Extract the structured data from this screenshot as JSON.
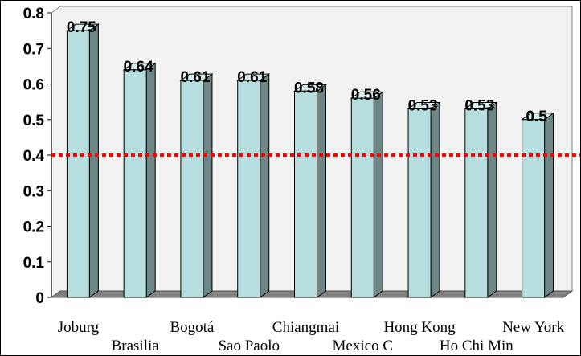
{
  "chart_data": {
    "type": "bar",
    "style": "3d-column",
    "categories": [
      "Joburg",
      "Brasilia",
      "Bogotá",
      "Sao Paolo",
      "Chiangmai",
      "Mexico C",
      "Hong Kong",
      "Ho Chi Min",
      "New York"
    ],
    "values": [
      0.75,
      0.64,
      0.61,
      0.61,
      0.58,
      0.56,
      0.53,
      0.53,
      0.5
    ],
    "data_labels": [
      "0.75",
      "0.64",
      "0.61",
      "0.61",
      "0.58",
      "0.56",
      "0.53",
      "0.53",
      "0.5"
    ],
    "y_ticks": [
      "0",
      "0.1",
      "0.2",
      "0.3",
      "0.4",
      "0.5",
      "0.6",
      "0.7",
      "0.8"
    ],
    "ylim": [
      0,
      0.8
    ],
    "reference_line": {
      "value": 0.4,
      "style": "dotted",
      "color": "#ff0000"
    },
    "grid": false,
    "legend": "none",
    "colors": {
      "bar_front": "#b6dede",
      "bar_side": "#6e8686",
      "bar_top": "#d6eeee",
      "plot_bg": "#f2f2f2",
      "floor": "#7f7f7f"
    }
  }
}
